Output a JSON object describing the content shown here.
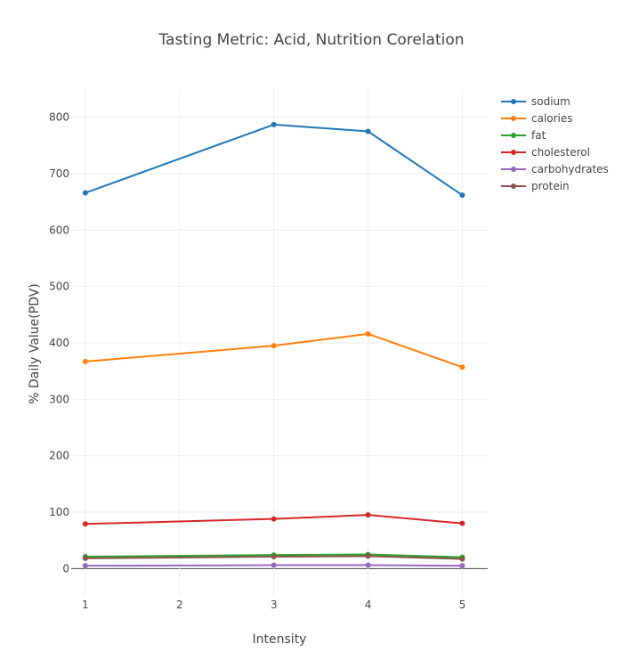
{
  "chart_data": {
    "type": "line",
    "title": "Tasting Metric: Acid, Nutrition Corelation",
    "xlabel": "Intensity",
    "ylabel": "% Daily Value(PDV)",
    "x": [
      1,
      3,
      4,
      5
    ],
    "xticks": [
      "1",
      "2",
      "3",
      "4",
      "5"
    ],
    "xlim": [
      0.85,
      5.27
    ],
    "yticks": [
      "0",
      "100",
      "200",
      "300",
      "400",
      "500",
      "600",
      "700",
      "800"
    ],
    "ylim": [
      -50,
      850
    ],
    "grid": true,
    "legend_position": "top-right",
    "series": [
      {
        "name": "sodium",
        "color": "#1f77b4",
        "values": [
          666,
          787,
          775,
          662
        ]
      },
      {
        "name": "calories",
        "color": "#ff7f0e",
        "values": [
          367,
          395,
          416,
          357
        ]
      },
      {
        "name": "fat",
        "color": "#2ca02c",
        "values": [
          21,
          24,
          25,
          20
        ]
      },
      {
        "name": "cholesterol",
        "color": "#d62728",
        "values": [
          79,
          88,
          95,
          80
        ]
      },
      {
        "name": "carbohydrates",
        "color": "#9467bd",
        "values": [
          5,
          6,
          6,
          5
        ]
      },
      {
        "name": "protein",
        "color": "#8c564b",
        "values": [
          18,
          21,
          22,
          17
        ]
      }
    ]
  }
}
